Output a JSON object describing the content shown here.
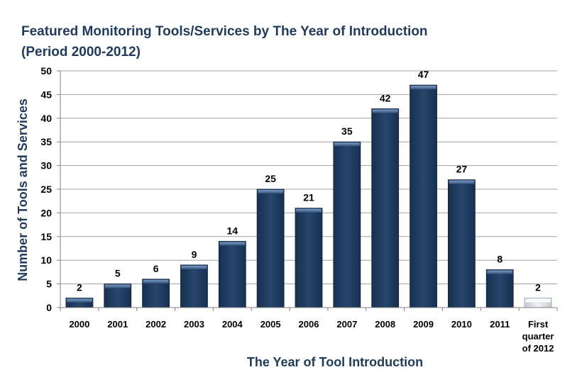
{
  "chart_data": {
    "type": "bar",
    "title_lines": [
      "Featured Monitoring Tools/Services by The Year of Introduction",
      "(Period 2000-2012)"
    ],
    "xlabel": "The Year of Tool Introduction",
    "ylabel": "Number of Tools and Services",
    "categories": [
      "2000",
      "2001",
      "2002",
      "2003",
      "2004",
      "2005",
      "2006",
      "2007",
      "2008",
      "2009",
      "2010",
      "2011",
      "First quarter of 2012"
    ],
    "values": [
      2,
      5,
      6,
      9,
      14,
      25,
      21,
      35,
      42,
      47,
      27,
      8,
      2
    ],
    "ylim": [
      0,
      50
    ],
    "yticks": [
      0,
      5,
      10,
      15,
      20,
      25,
      30,
      35,
      40,
      45,
      50
    ],
    "grid": true,
    "colors": {
      "bar": "#1f3a5c",
      "bar_highlight": "#5a7fa8",
      "last_bar": "#d8dde3",
      "title": "#1f3a5c",
      "grid": "#a0a0a0"
    }
  }
}
